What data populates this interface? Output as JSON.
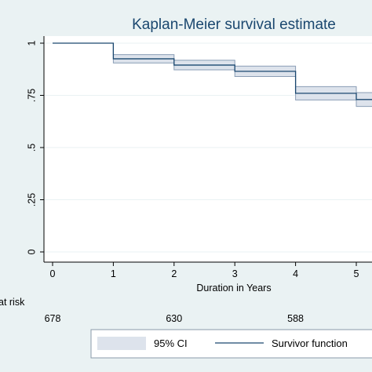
{
  "chart_data": {
    "type": "line",
    "title": "Kaplan-Meier survival estimate",
    "xlabel": "Duration in Years",
    "ylabel": "",
    "xlim": [
      0,
      5.3
    ],
    "ylim": [
      0,
      1
    ],
    "x_ticks": [
      "0",
      "1",
      "2",
      "3",
      "4",
      "5"
    ],
    "y_ticks": [
      {
        "value": 0,
        "label": "0"
      },
      {
        "value": 0.25,
        "label": ".25"
      },
      {
        "value": 0.5,
        "label": ".5"
      },
      {
        "value": 0.75,
        "label": ".75"
      },
      {
        "value": 1,
        "label": "1"
      }
    ],
    "grid": "horizontal",
    "series": [
      {
        "name": "Survivor function",
        "step": true,
        "points": [
          {
            "x": 0,
            "y": 1.0,
            "lower": 1.0,
            "upper": 1.0
          },
          {
            "x": 1,
            "y": 0.925,
            "lower": 0.905,
            "upper": 0.945
          },
          {
            "x": 2,
            "y": 0.895,
            "lower": 0.872,
            "upper": 0.918
          },
          {
            "x": 3,
            "y": 0.865,
            "lower": 0.84,
            "upper": 0.89
          },
          {
            "x": 4,
            "y": 0.76,
            "lower": 0.728,
            "upper": 0.792
          },
          {
            "x": 5,
            "y": 0.73,
            "lower": 0.697,
            "upper": 0.763
          }
        ],
        "x_end": 5.3
      }
    ],
    "ci_label": "95% CI",
    "legend": {
      "placement": "bottom",
      "entries": [
        {
          "label": "95% CI",
          "kind": "band"
        },
        {
          "label": "Survivor function",
          "kind": "line"
        }
      ]
    },
    "risk_table": {
      "title": "Number at risk",
      "visible_title": "at risk",
      "rows": [
        {
          "x": 0,
          "value": "678"
        },
        {
          "x": 2,
          "value": "630"
        },
        {
          "x": 4,
          "value": "588"
        }
      ]
    },
    "colors": {
      "background": "#eaf2f3",
      "plot_area": "#ffffff",
      "line": "#1a476f",
      "ci_fill": "#dde3ec",
      "ci_edge": "#8a9db5",
      "grid": "#eaf2f3"
    }
  }
}
